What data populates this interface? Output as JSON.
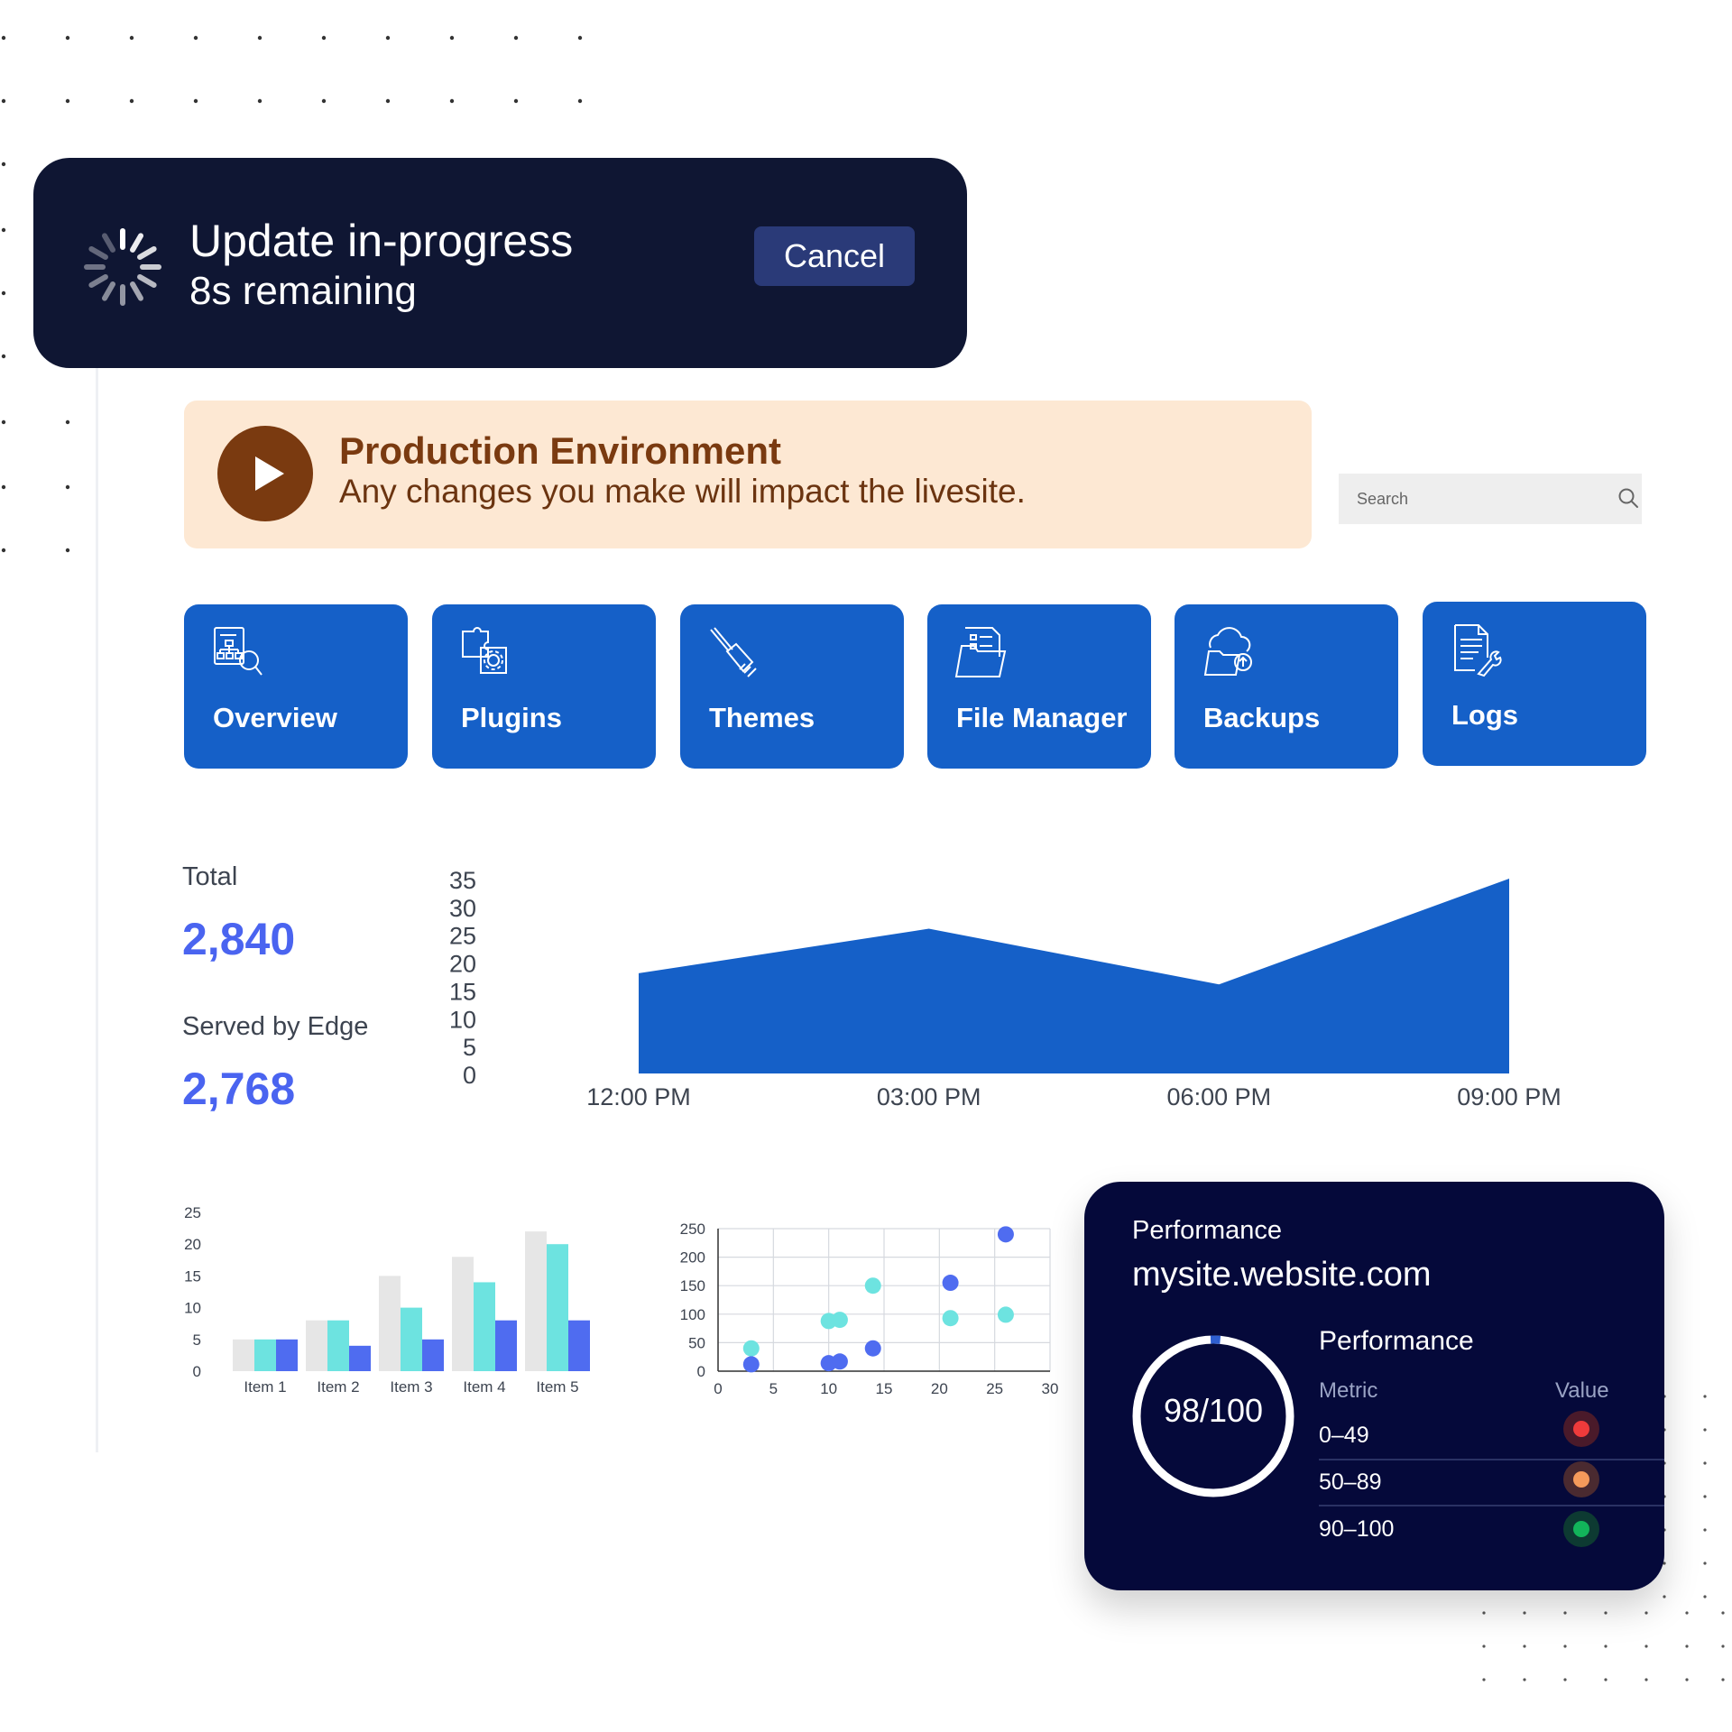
{
  "update": {
    "title": "Update in-progress",
    "remaining": "8s remaining",
    "cancel_label": "Cancel"
  },
  "banner": {
    "title": "Production Environment",
    "subtitle": "Any changes you make will impact the livesite."
  },
  "search": {
    "placeholder": "Search"
  },
  "tiles": [
    {
      "label": "Overview",
      "icon": "sitemap-search-icon"
    },
    {
      "label": "Plugins",
      "icon": "puzzle-gear-icon"
    },
    {
      "label": "Themes",
      "icon": "paintbrush-icon"
    },
    {
      "label": "File Manager",
      "icon": "folder-icon"
    },
    {
      "label": "Backups",
      "icon": "cloud-folder-icon"
    },
    {
      "label": "Logs",
      "icon": "document-wrench-icon"
    }
  ],
  "stats": {
    "total_label": "Total",
    "total_value": "2,840",
    "edge_label": "Served by Edge",
    "edge_value": "2,768"
  },
  "performance": {
    "heading": "Performance",
    "site": "mysite.website.com",
    "score": "98/100",
    "score_fraction": 0.98,
    "subheading": "Performance",
    "col_metric": "Metric",
    "col_value": "Value",
    "rows": [
      {
        "range": "0–49",
        "color": "#ef3b3b"
      },
      {
        "range": "50–89",
        "color": "#f59a5b"
      },
      {
        "range": "90–100",
        "color": "#12b45a"
      }
    ]
  },
  "colors": {
    "accent": "#1560c8",
    "stat_value": "#4a64f0",
    "dark_panel": "#0f1633",
    "banner_bg": "#fde8d3",
    "banner_text": "#7a3a10"
  },
  "chart_data": [
    {
      "type": "area",
      "categories": [
        "12:00 PM",
        "03:00 PM",
        "06:00 PM",
        "09:00 PM"
      ],
      "y_ticks": [
        35,
        30,
        25,
        20,
        15,
        10,
        5,
        0
      ],
      "ylim": [
        0,
        35
      ],
      "values": [
        18,
        26,
        16,
        35
      ],
      "color": "#1560c8",
      "grid": false
    },
    {
      "type": "bar",
      "categories": [
        "Item 1",
        "Item 2",
        "Item 3",
        "Item 4",
        "Item 5"
      ],
      "y_ticks": [
        25,
        20,
        15,
        10,
        5,
        0
      ],
      "ylim": [
        0,
        25
      ],
      "series": [
        {
          "values": [
            5,
            8,
            15,
            18,
            22
          ],
          "color": "#e6e6e6"
        },
        {
          "values": [
            5,
            8,
            10,
            14,
            20
          ],
          "color": "#6de3e0"
        },
        {
          "values": [
            5,
            4,
            5,
            8,
            8
          ],
          "color": "#4f6cf0"
        }
      ],
      "grid": false
    },
    {
      "type": "scatter",
      "x_ticks": [
        0,
        5,
        10,
        15,
        20,
        25,
        30
      ],
      "y_ticks": [
        250,
        200,
        150,
        100,
        50,
        0
      ],
      "xlim": [
        0,
        30
      ],
      "ylim": [
        0,
        250
      ],
      "grid": true,
      "series": [
        {
          "color": "#6de3e0",
          "points": [
            [
              3,
              40
            ],
            [
              10,
              88
            ],
            [
              11,
              90
            ],
            [
              14,
              150
            ],
            [
              21,
              93
            ],
            [
              26,
              99
            ]
          ]
        },
        {
          "color": "#4f6cf0",
          "points": [
            [
              3,
              12
            ],
            [
              10,
              14
            ],
            [
              11,
              17
            ],
            [
              14,
              40
            ],
            [
              21,
              155
            ],
            [
              26,
              240
            ]
          ]
        }
      ]
    }
  ]
}
